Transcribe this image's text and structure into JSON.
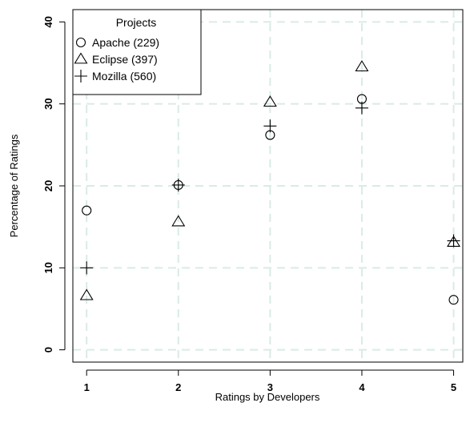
{
  "chart_data": {
    "type": "scatter",
    "xlabel": "Ratings by Developers",
    "ylabel": "Percentage of Ratings",
    "x": [
      1,
      2,
      3,
      4,
      5
    ],
    "xticks": [
      "1",
      "2",
      "3",
      "4",
      "5"
    ],
    "yticks": [
      "0",
      "10",
      "20",
      "30",
      "40"
    ],
    "xlim": [
      0.85,
      5.1
    ],
    "ylim": [
      -1.5,
      41.5
    ],
    "grid": true,
    "legend_position": "top-left",
    "legend": {
      "title": "Projects",
      "entries": [
        {
          "label": "Apache (229)",
          "marker": "circle"
        },
        {
          "label": "Eclipse (397)",
          "marker": "triangle"
        },
        {
          "label": "Mozilla (560)",
          "marker": "plus"
        }
      ]
    },
    "series": [
      {
        "name": "Apache (229)",
        "marker": "circle",
        "values": [
          17.0,
          20.1,
          26.2,
          30.6,
          6.1
        ]
      },
      {
        "name": "Eclipse (397)",
        "marker": "triangle",
        "values": [
          6.6,
          15.6,
          30.2,
          34.5,
          13.1
        ]
      },
      {
        "name": "Mozilla (560)",
        "marker": "plus",
        "values": [
          10.0,
          20.1,
          27.3,
          29.5,
          13.3
        ]
      }
    ],
    "colors": {
      "grid": "#d9ebe8",
      "ink": "#000000",
      "background": "#ffffff"
    }
  }
}
